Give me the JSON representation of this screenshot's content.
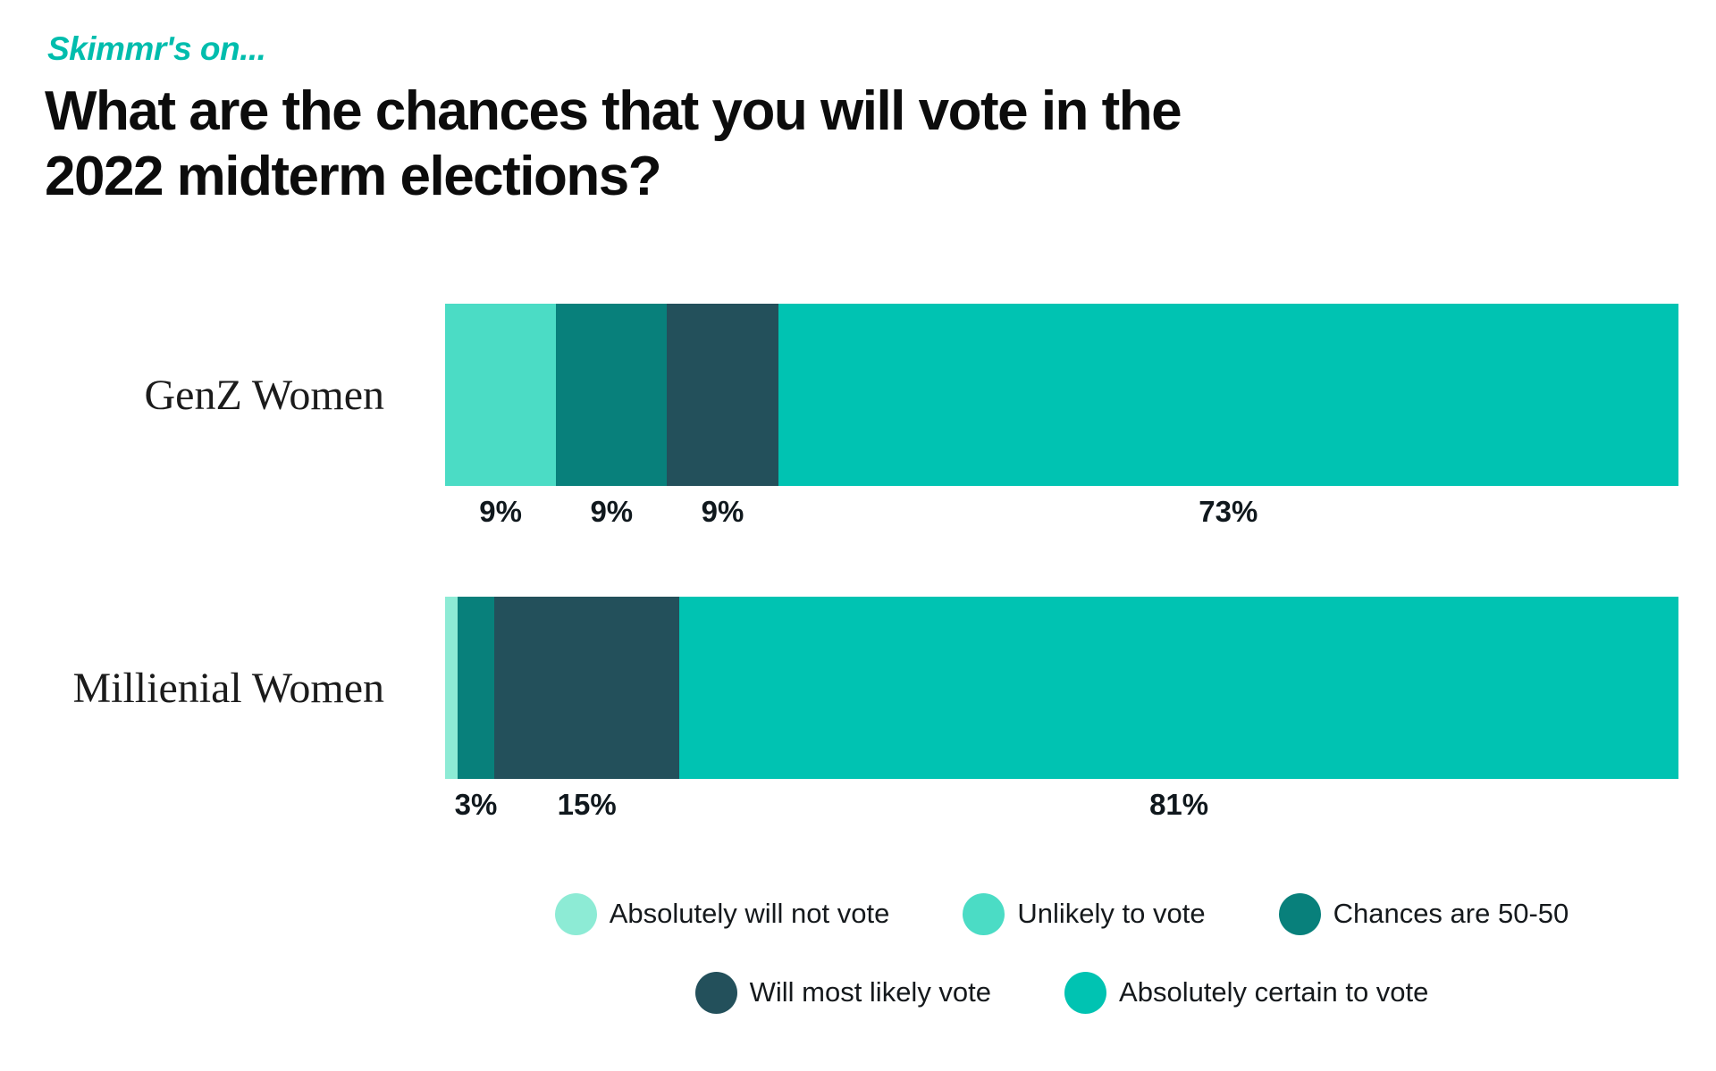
{
  "header": {
    "kicker": "Skimmr's on...",
    "title": "What are the chances that you will vote in the\n2022 midterm elections?"
  },
  "colors": {
    "kicker_teal": "#00BDAD",
    "title_black": "#0C0C0C",
    "absolutely_will_not_vote": "#8DEBD5",
    "unlikely_to_vote": "#4BDCC5",
    "chances_are_50_50": "#08807B",
    "will_most_likely_vote": "#23505B",
    "absolutely_certain_to_vote": "#00C3B2"
  },
  "chart_data": {
    "type": "bar",
    "orientation": "horizontal",
    "stacked": true,
    "title": "What are the chances that you will vote in the 2022 midterm elections?",
    "xlabel": "",
    "ylabel": "",
    "unit": "%",
    "xlim": [
      0,
      100
    ],
    "grid": false,
    "legend_position": "bottom",
    "categories": [
      "GenZ Women",
      "Millienial Women"
    ],
    "series": [
      {
        "name": "Absolutely will not vote",
        "color": "#8DEBD5",
        "values": [
          0,
          1
        ],
        "labels": [
          "",
          ""
        ]
      },
      {
        "name": "Unlikely to vote",
        "color": "#4BDCC5",
        "values": [
          9,
          0
        ],
        "labels": [
          "9%",
          ""
        ]
      },
      {
        "name": "Chances are 50-50",
        "color": "#08807B",
        "values": [
          9,
          3
        ],
        "labels": [
          "9%",
          "3%"
        ]
      },
      {
        "name": "Will most likely vote",
        "color": "#23505B",
        "values": [
          9,
          15
        ],
        "labels": [
          "9%",
          "15%"
        ]
      },
      {
        "name": "Absolutely certain to vote",
        "color": "#00C3B2",
        "values": [
          73,
          81
        ],
        "labels": [
          "73%",
          "81%"
        ]
      }
    ],
    "legend_rows": [
      [
        0,
        1,
        2
      ],
      [
        3,
        4
      ]
    ]
  }
}
